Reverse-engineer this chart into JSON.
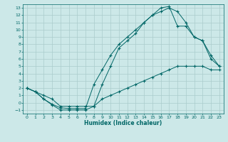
{
  "xlabel": "Humidex (Indice chaleur)",
  "bg_color": "#cce8e8",
  "grid_color": "#aacccc",
  "line_color": "#006666",
  "xlim": [
    -0.5,
    23.5
  ],
  "ylim": [
    -1.5,
    13.5
  ],
  "xticks": [
    0,
    1,
    2,
    3,
    4,
    5,
    6,
    7,
    8,
    9,
    10,
    11,
    12,
    13,
    14,
    15,
    16,
    17,
    18,
    19,
    20,
    21,
    22,
    23
  ],
  "yticks": [
    -1,
    0,
    1,
    2,
    3,
    4,
    5,
    6,
    7,
    8,
    9,
    10,
    11,
    12,
    13
  ],
  "line1_x": [
    0,
    1,
    2,
    3,
    4,
    5,
    6,
    7,
    8,
    9,
    10,
    11,
    12,
    13,
    14,
    15,
    16,
    17,
    18,
    19,
    20,
    21,
    22,
    23
  ],
  "line1_y": [
    2.0,
    1.5,
    1.0,
    0.5,
    -0.5,
    -0.5,
    -0.5,
    -0.5,
    -0.5,
    0.5,
    1.0,
    1.5,
    2.0,
    2.5,
    3.0,
    3.5,
    4.0,
    4.5,
    5.0,
    5.0,
    5.0,
    5.0,
    4.5,
    4.5
  ],
  "line2_x": [
    0,
    1,
    2,
    3,
    4,
    5,
    6,
    7,
    8,
    9,
    10,
    11,
    12,
    13,
    14,
    15,
    16,
    17,
    18,
    19,
    20,
    21,
    22,
    23
  ],
  "line2_y": [
    2.0,
    1.5,
    0.5,
    -0.3,
    -1.0,
    -1.0,
    -1.0,
    -1.0,
    -0.5,
    2.5,
    5.0,
    7.5,
    8.5,
    9.5,
    11.0,
    12.0,
    12.5,
    13.0,
    12.5,
    11.0,
    9.0,
    8.5,
    6.0,
    5.0
  ],
  "line3_x": [
    0,
    1,
    2,
    3,
    4,
    5,
    6,
    7,
    8,
    9,
    10,
    11,
    12,
    13,
    14,
    15,
    16,
    17,
    18,
    19,
    20,
    21,
    22,
    23
  ],
  "line3_y": [
    2.0,
    1.5,
    0.5,
    -0.2,
    -0.7,
    -0.8,
    -0.8,
    -0.8,
    2.5,
    4.5,
    6.5,
    8.0,
    9.0,
    10.0,
    11.0,
    12.0,
    13.0,
    13.2,
    10.5,
    10.5,
    9.0,
    8.5,
    6.5,
    5.0
  ]
}
